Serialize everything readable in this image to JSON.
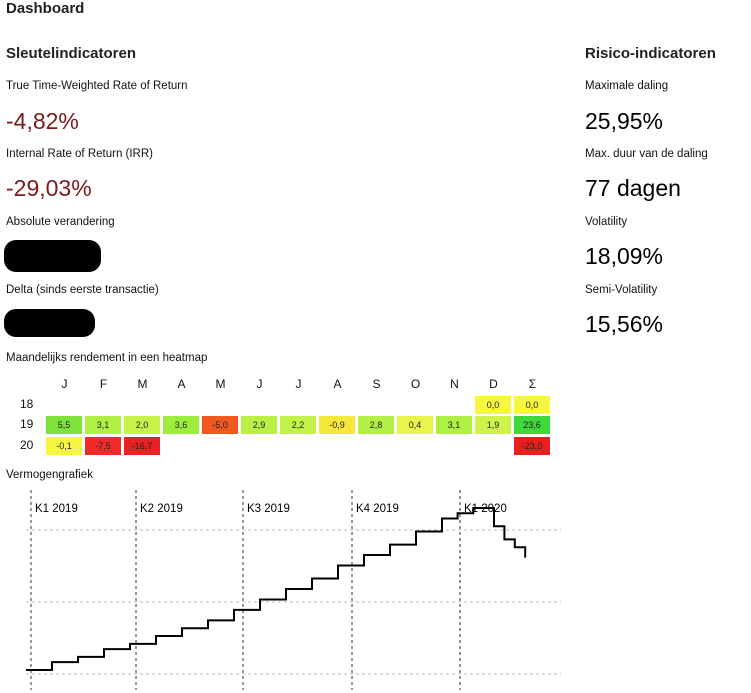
{
  "page": {
    "title": "Dashboard"
  },
  "key_indicators": {
    "heading": "Sleutelindicatoren",
    "ttwror_label": "True Time-Weighted Rate of Return",
    "ttwror_value": "-4,82%",
    "irr_label": "Internal Rate of Return (IRR)",
    "irr_value": "-29,03%",
    "abs_change_label": "Absolute verandering",
    "delta_label": "Delta (sinds eerste transactie)"
  },
  "risk_indicators": {
    "heading": "Risico-indicatoren",
    "max_drawdown_label": "Maximale daling",
    "max_drawdown_value": "25,95%",
    "max_drawdown_duration_label": "Max. duur van de daling",
    "max_drawdown_duration_value": "77 dagen",
    "volatility_label": "Volatility",
    "volatility_value": "18,09%",
    "semi_volatility_label": "Semi-Volatility",
    "semi_volatility_value": "15,56%"
  },
  "heatmap": {
    "title": "Maandelijks rendement in een heatmap",
    "columns": [
      "J",
      "F",
      "M",
      "A",
      "M",
      "J",
      "J",
      "A",
      "S",
      "O",
      "N",
      "D",
      "Σ"
    ],
    "rows": [
      {
        "year": "18",
        "cells": [
          null,
          null,
          null,
          null,
          null,
          null,
          null,
          null,
          null,
          null,
          null,
          "0,0",
          "0,0"
        ],
        "colors": [
          null,
          null,
          null,
          null,
          null,
          null,
          null,
          null,
          null,
          null,
          null,
          "#f5f542",
          "#f5f542"
        ]
      },
      {
        "year": "19",
        "cells": [
          "5,5",
          "3,1",
          "2,0",
          "3,6",
          "-5,0",
          "2,9",
          "2,2",
          "-0,9",
          "2,8",
          "0,4",
          "3,1",
          "1,9",
          "23,6"
        ],
        "colors": [
          "#7de33a",
          "#aef043",
          "#c6f24a",
          "#9ded3f",
          "#f0581f",
          "#b8f046",
          "#c2f249",
          "#f5e83a",
          "#b4ef45",
          "#e7f54c",
          "#aef043",
          "#cef34a",
          "#3fd93a"
        ]
      },
      {
        "year": "20",
        "cells": [
          "-0,1",
          "-7,5",
          "-16,7",
          null,
          null,
          null,
          null,
          null,
          null,
          null,
          null,
          null,
          "-23,0"
        ],
        "colors": [
          "#f5f542",
          "#ee2a2a",
          "#e82222",
          null,
          null,
          null,
          null,
          null,
          null,
          null,
          null,
          null,
          "#e81f1f"
        ]
      }
    ]
  },
  "chart": {
    "title": "Vermogengrafiek",
    "quarters": [
      "K1 2019",
      "K2 2019",
      "K3 2019",
      "K4 2019",
      "K1 2020"
    ]
  },
  "chart_data": {
    "type": "line",
    "title": "Vermogengrafiek",
    "xlabel": "",
    "ylabel": "",
    "x_ticks": [
      "K1 2019",
      "K2 2019",
      "K3 2019",
      "K4 2019",
      "K1 2020"
    ],
    "series": [
      {
        "x": [
          0.0,
          0.05,
          0.1,
          0.15,
          0.2,
          0.25,
          0.3,
          0.35,
          0.4,
          0.45,
          0.5,
          0.55,
          0.6,
          0.65,
          0.7,
          0.75,
          0.8,
          0.83,
          0.86,
          0.88,
          0.9,
          0.92,
          0.94,
          0.96
        ],
        "y": [
          0,
          3,
          5,
          8,
          10,
          13,
          16,
          19,
          23,
          27,
          31,
          35,
          40,
          44,
          48,
          53,
          58,
          60,
          62,
          62,
          55,
          50,
          47,
          43
        ]
      }
    ],
    "grid": true,
    "legend": "none"
  },
  "colors": {
    "negative_value": "#7a1a1a",
    "redaction": "#000000",
    "line": "#000000",
    "grid": "#bbbbbb"
  }
}
